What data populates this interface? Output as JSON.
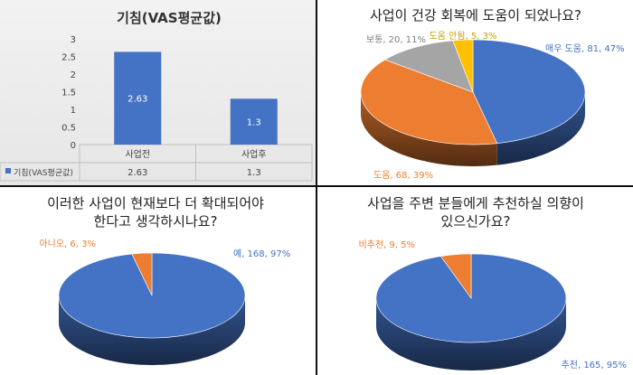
{
  "chart_data": [
    {
      "type": "bar",
      "title": "기침(VAS평균값)",
      "categories": [
        "사업전",
        "사업후"
      ],
      "series": [
        {
          "name": "기침(VAS평균값)",
          "values": [
            2.63,
            1.3
          ]
        }
      ],
      "value_labels": [
        "2.63",
        "1.3"
      ],
      "ylim": [
        0,
        3
      ],
      "yticks": [
        0,
        0.5,
        1,
        1.5,
        2,
        2.5,
        3
      ],
      "ytick_labels": [
        "0",
        "0.5",
        "1",
        "1.5",
        "2",
        "2.5",
        "3"
      ],
      "grid": false,
      "legend": "data-table",
      "color": "#4472c4"
    },
    {
      "type": "pie",
      "title": "사업이 건강 회복에 도움이 되었나요?",
      "slices": [
        {
          "label": "매우 도움, 81, 47%",
          "value": 81,
          "percent": 47,
          "color": "#4472c4"
        },
        {
          "label": "도움, 68, 39%",
          "value": 68,
          "percent": 39,
          "color": "#ed7d31"
        },
        {
          "label": "보통, 20, 11%",
          "value": 20,
          "percent": 11,
          "color": "#a5a5a5"
        },
        {
          "label": "도움 안됨, 5, 3%",
          "value": 5,
          "percent": 3,
          "color": "#ffc000"
        }
      ]
    },
    {
      "type": "pie",
      "title": [
        "이러한 사업이 현재보다 더 확대되어야",
        "한다고 생각하시나요?"
      ],
      "slices": [
        {
          "label": "예, 168, 97%",
          "value": 168,
          "percent": 97,
          "color": "#4472c4"
        },
        {
          "label": "아니오, 6, 3%",
          "value": 6,
          "percent": 3,
          "color": "#ed7d31"
        }
      ]
    },
    {
      "type": "pie",
      "title": [
        "사업을 주변 분들에게 추천하실 의향이",
        "있으신가요?"
      ],
      "slices": [
        {
          "label": "추천, 165, 95%",
          "value": 165,
          "percent": 95,
          "color": "#4472c4"
        },
        {
          "label": "비추천, 9, 5%",
          "value": 9,
          "percent": 5,
          "color": "#ed7d31"
        }
      ]
    }
  ]
}
